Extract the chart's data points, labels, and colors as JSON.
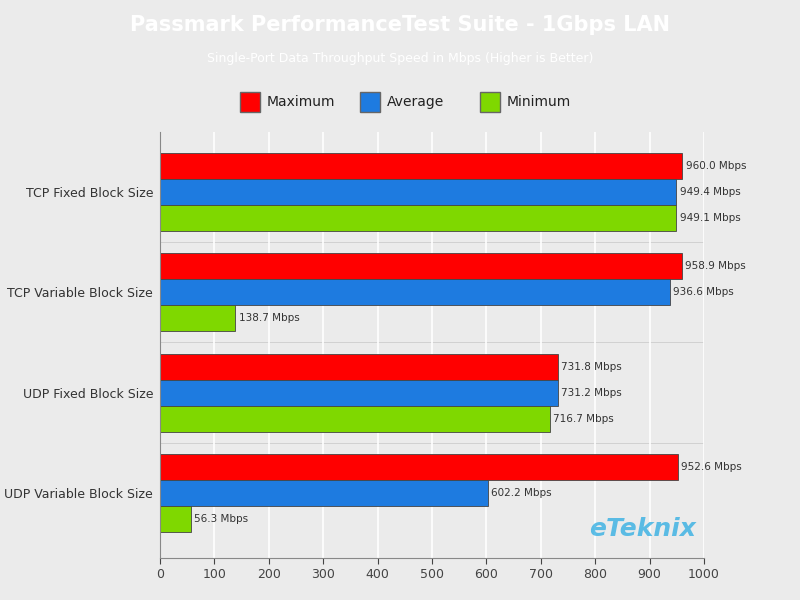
{
  "title": "Passmark PerformanceTest Suite - 1Gbps LAN",
  "subtitle": "Single-Port Data Throughput Speed in Mbps (Higher is Better)",
  "categories": [
    "TCP Fixed Block Size",
    "TCP Variable Block Size",
    "UDP Fixed Block Size",
    "UDP Variable Block Size"
  ],
  "maximum": [
    960.0,
    958.9,
    731.8,
    952.6
  ],
  "average": [
    949.4,
    936.6,
    731.2,
    602.2
  ],
  "minimum": [
    949.1,
    138.7,
    716.7,
    56.3
  ],
  "max_labels": [
    "960.0 Mbps",
    "958.9 Mbps",
    "731.8 Mbps",
    "952.6 Mbps"
  ],
  "avg_labels": [
    "949.4 Mbps",
    "936.6 Mbps",
    "731.2 Mbps",
    "602.2 Mbps"
  ],
  "min_labels": [
    "949.1 Mbps",
    "138.7 Mbps",
    "716.7 Mbps",
    "56.3 Mbps"
  ],
  "color_max": "#FF0000",
  "color_avg": "#1E7BE0",
  "color_min": "#7FD800",
  "bar_edge_color": "#444444",
  "header_bg": "#29ABE2",
  "plot_bg": "#EBEBEB",
  "fig_bg": "#EBEBEB",
  "xlim": [
    0,
    1000
  ],
  "xticks": [
    0,
    100,
    200,
    300,
    400,
    500,
    600,
    700,
    800,
    900,
    1000
  ],
  "watermark": "eTeknix",
  "watermark_color": "#29ABE2",
  "legend_labels": [
    "Maximum",
    "Average",
    "Minimum"
  ]
}
